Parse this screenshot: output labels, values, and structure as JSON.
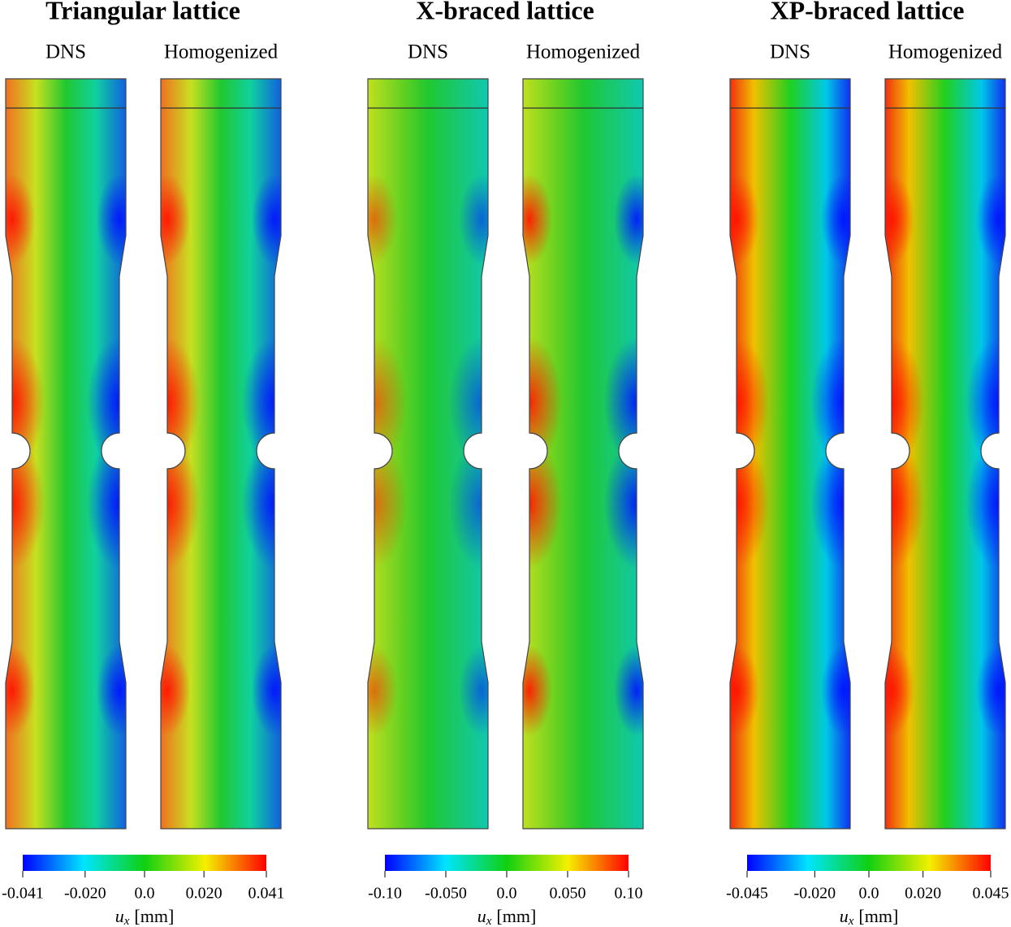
{
  "panels": [
    {
      "title": "Triangular lattice",
      "columns": [
        "DNS",
        "Homogenized"
      ],
      "colorbar": {
        "lim": [
          -0.041,
          0.041
        ],
        "ticks": [
          -0.041,
          {
            "value": -0.02,
            "label": "-0.020"
          },
          {
            "value": 0,
            "label": "0.0"
          },
          {
            "value": 0.02,
            "label": "0.020"
          },
          0.041
        ],
        "label": {
          "symbol": "u",
          "subscript": "x",
          "unit": "[mm]"
        }
      }
    },
    {
      "title": "X-braced lattice",
      "columns": [
        "DNS",
        "Homogenized"
      ],
      "colorbar": {
        "lim": [
          -0.1,
          0.1
        ],
        "ticks": [
          {
            "value": -0.1,
            "label": "-0.10"
          },
          {
            "value": -0.05,
            "label": "-0.050"
          },
          {
            "value": 0,
            "label": "0.0"
          },
          {
            "value": 0.05,
            "label": "0.050"
          },
          {
            "value": 0.1,
            "label": "0.10"
          }
        ],
        "label": {
          "symbol": "u",
          "subscript": "x",
          "unit": "[mm]"
        }
      }
    },
    {
      "title": "XP-braced lattice",
      "columns": [
        "DNS",
        "Homogenized"
      ],
      "colorbar": {
        "lim": [
          -0.045,
          0.045
        ],
        "ticks": [
          -0.045,
          {
            "value": -0.02,
            "label": "-0.020"
          },
          {
            "value": 0,
            "label": "0.0"
          },
          {
            "value": 0.02,
            "label": "0.020"
          },
          0.045
        ],
        "label": {
          "symbol": "u",
          "subscript": "x",
          "unit": "[mm]"
        }
      }
    }
  ]
}
